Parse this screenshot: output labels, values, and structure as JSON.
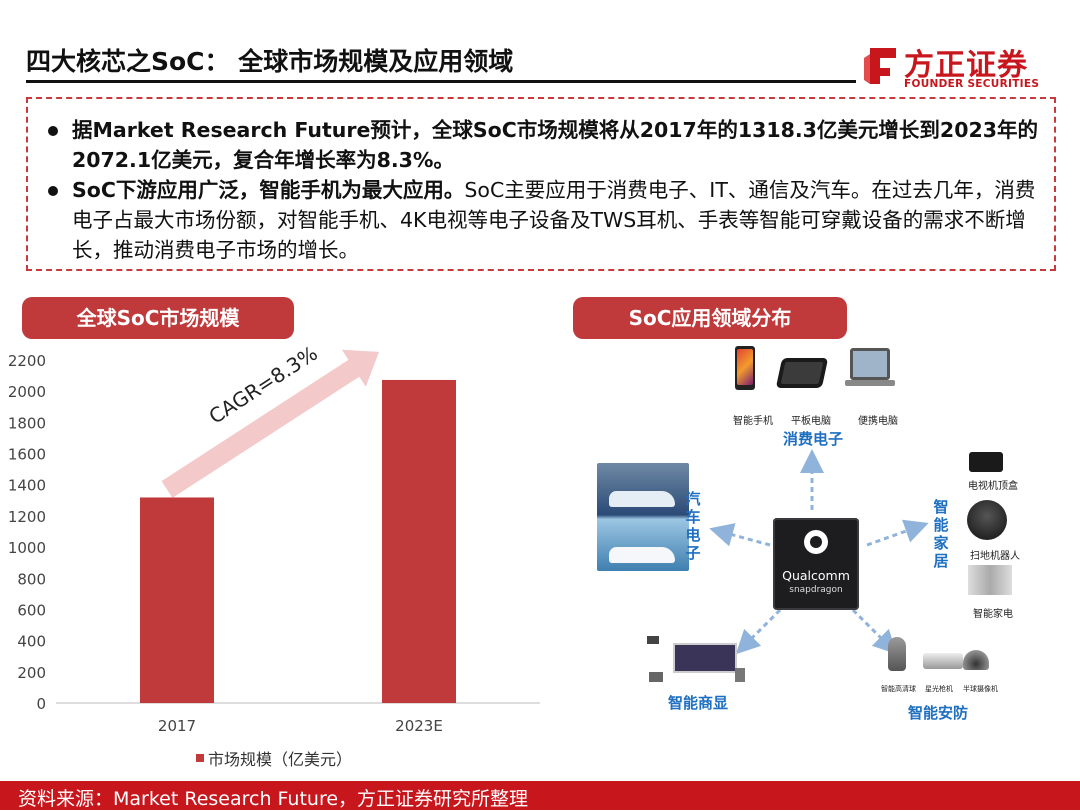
{
  "header": {
    "title": "四大核芯之SoC： 全球市场规模及应用领域",
    "logo_cn": "方正证券",
    "logo_en": "FOUNDER SECURITIES"
  },
  "bullets": [
    {
      "bold": "据Market Research Future预计，全球SoC市场规模将从2017年的1318.3亿美元增长到2023年的2072.1亿美元，复合年增长率为8.3%。",
      "normal": ""
    },
    {
      "bold": "SoC下游应用广泛，智能手机为最大应用。",
      "normal": "SoC主要应用于消费电子、IT、通信及汽车。在过去几年，消费电子占最大市场份额，对智能手机、4K电视等电子设备及TWS耳机、手表等智能可穿戴设备的需求不断增长，推动消费电子市场的增长。"
    }
  ],
  "sections": {
    "left_title": "全球SoC市场规模",
    "right_title": "SoC应用领域分布"
  },
  "chart_data": {
    "type": "bar",
    "categories": [
      "2017",
      "2023E"
    ],
    "series": [
      {
        "name": "市场规模（亿美元）",
        "values": [
          1318.3,
          2072.1
        ]
      }
    ],
    "yticks": [
      "0",
      "200",
      "400",
      "600",
      "800",
      "1000",
      "1200",
      "1400",
      "1600",
      "1800",
      "2000",
      "2200"
    ],
    "ylim": [
      0,
      2200
    ],
    "annotation": "CAGR=8.3%",
    "bar_color": "#c0393b",
    "arrow_color": "#f3c9c9",
    "legend_position": "bottom"
  },
  "diagram": {
    "center": {
      "brand": "Qualcomm",
      "sub": "snapdragon"
    },
    "categories": {
      "consumer": "消费电子",
      "auto": "汽车电子",
      "home": "智能家居",
      "display": "智能商显",
      "security": "智能安防"
    },
    "consumer_items": [
      "智能手机",
      "平板电脑",
      "便携电脑"
    ],
    "home_items": [
      "电视机顶盒",
      "扫地机器人",
      "智能家电"
    ],
    "security_items": [
      "智能高清球",
      "星光枪机",
      "半球摄像机"
    ],
    "arrow_color": "#8fb3da"
  },
  "footer": {
    "source": "资料来源：Market Research Future，方正证券研究所整理"
  }
}
